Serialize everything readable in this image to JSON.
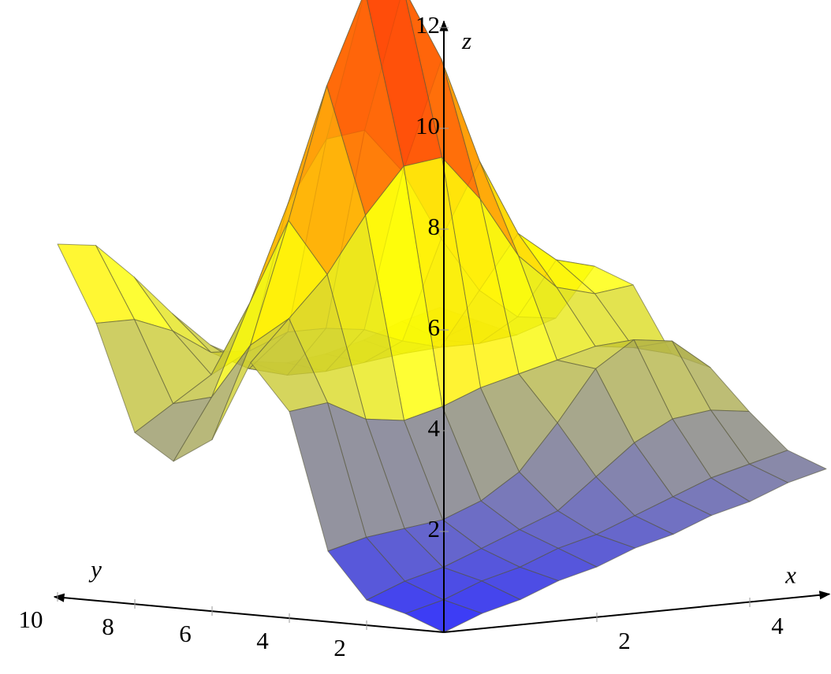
{
  "chart_data": {
    "type": "surface",
    "x": [
      0,
      0.5,
      1,
      1.5,
      2,
      2.5,
      3,
      3.5,
      4,
      4.5,
      5
    ],
    "y": [
      0,
      1,
      2,
      3,
      4,
      5,
      6,
      7,
      8,
      9,
      10
    ],
    "z": [
      [
        0,
        0.3,
        0.5,
        0.8,
        1.0,
        1.3,
        1.5,
        1.8,
        2.0,
        2.3,
        2.5
      ],
      [
        0.3,
        0.5,
        0.8,
        1.0,
        1.3,
        1.5,
        1.8,
        2.1,
        2.4,
        2.6,
        2.8
      ],
      [
        0.5,
        0.8,
        1.0,
        1.3,
        1.6,
        1.9,
        2.5,
        3.1,
        3.5,
        3.6,
        3.5
      ],
      [
        1.4,
        1.6,
        1.7,
        1.8,
        2.1,
        2.6,
        3.5,
        4.5,
        5.0,
        4.9,
        4.3
      ],
      [
        4.1,
        4.2,
        3.8,
        3.7,
        3.9,
        4.2,
        4.4,
        4.6,
        4.8,
        4.7,
        4.5
      ],
      [
        5.0,
        5.8,
        6.6,
        7.7,
        8.6,
        8.7,
        7.8,
        6.6,
        5.9,
        5.7,
        5.8
      ],
      [
        3.4,
        5.2,
        7.6,
        10.2,
        12.0,
        12.0,
        10.5,
        8.4,
        6.9,
        6.3,
        6.1
      ],
      [
        2.9,
        4.1,
        5.9,
        7.8,
        9.0,
        9.1,
        8.2,
        6.8,
        5.7,
        5.1,
        5.0
      ],
      [
        3.4,
        3.9,
        4.4,
        4.8,
        5.1,
        5.1,
        5.0,
        4.7,
        4.5,
        4.5,
        4.6
      ],
      [
        5.5,
        5.5,
        5.2,
        4.7,
        4.3,
        4.1,
        4.1,
        4.2,
        4.3,
        4.5,
        4.8
      ],
      [
        7.0,
        6.9,
        6.2,
        5.4,
        4.7,
        4.3,
        4.2,
        4.3,
        4.5,
        4.8,
        5.0
      ]
    ],
    "xlim": [
      0,
      5
    ],
    "ylim": [
      0,
      10
    ],
    "zlim": [
      0,
      12
    ],
    "xticks": [
      2,
      4
    ],
    "yticks": [
      2,
      4,
      6,
      8,
      10
    ],
    "zticks": [
      2,
      4,
      6,
      8,
      10,
      12
    ],
    "xlabel": "x",
    "ylabel": "y",
    "zlabel": "z",
    "colormap": [
      "#0000ff",
      "#ffff00",
      "#ff0000"
    ],
    "opacity": 0.8,
    "mesh_color": "#5a5a3c"
  }
}
